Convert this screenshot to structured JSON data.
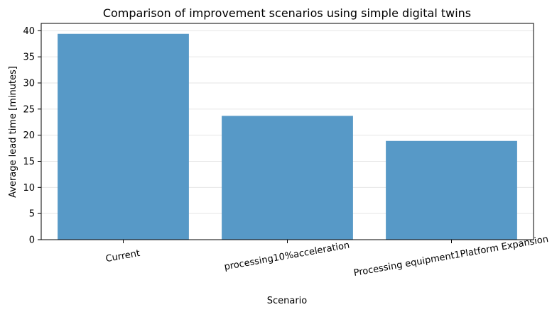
{
  "chart_data": {
    "type": "bar",
    "title": "Comparison of improvement scenarios using simple digital twins",
    "xlabel": "Scenario",
    "ylabel": "Average lead time [minutes]",
    "categories": [
      "Current",
      "processing10%acceleration",
      "Processing equipment1Platform Expansion"
    ],
    "values": [
      39.4,
      23.7,
      18.9
    ],
    "ylim": [
      0,
      41.4
    ],
    "yticks": [
      0,
      5,
      10,
      15,
      20,
      25,
      30,
      35,
      40
    ],
    "grid": true,
    "bar_color": "#5799c7"
  }
}
